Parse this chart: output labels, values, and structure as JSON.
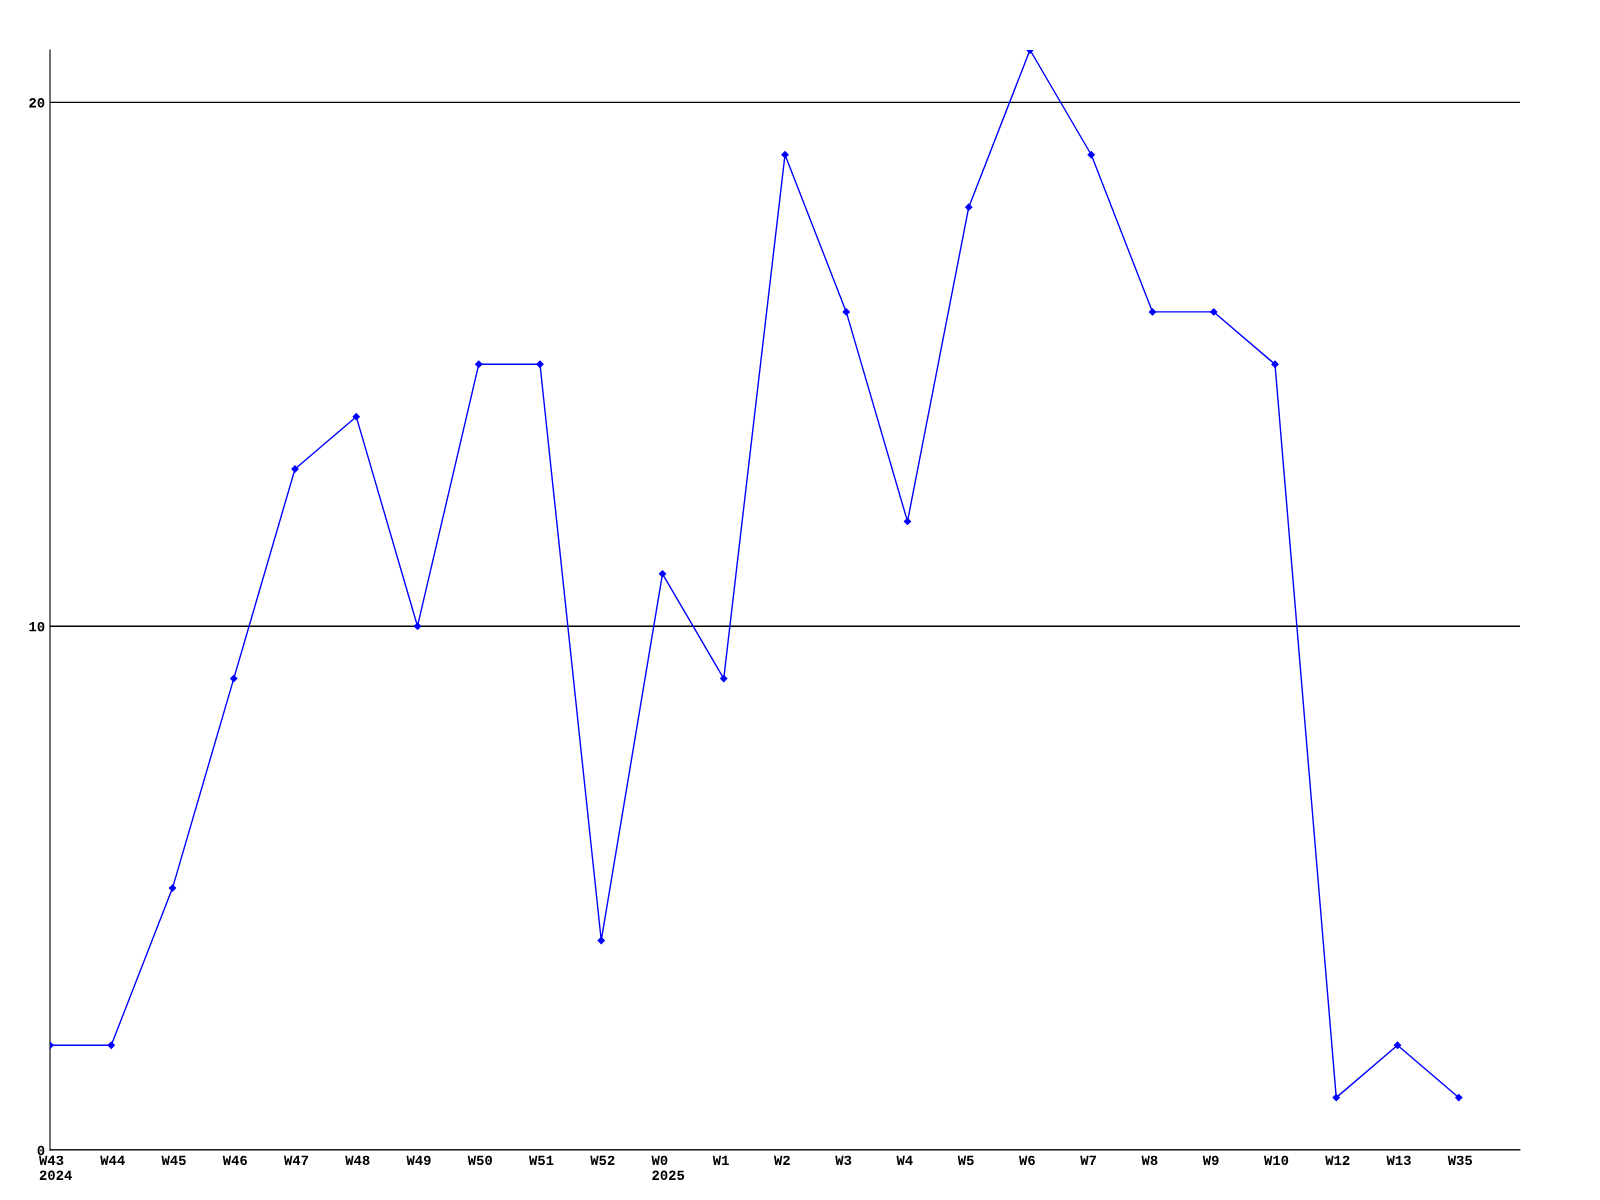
{
  "chart_data": {
    "type": "line",
    "categories": [
      "W43\n2024",
      "W44",
      "W45",
      "W46",
      "W47",
      "W48",
      "W49",
      "W50",
      "W51",
      "W52",
      "W0\n2025",
      "W1",
      "W2",
      "W3",
      "W4",
      "W5",
      "W6",
      "W7",
      "W8",
      "W9",
      "W10",
      "W12",
      "W13",
      "W35"
    ],
    "series": [
      {
        "color": "#0000ff",
        "values": [
          2,
          2,
          5,
          9,
          13,
          14,
          10,
          15,
          15,
          4,
          11,
          9,
          19,
          16,
          12,
          18,
          21,
          19,
          16,
          16,
          15,
          1,
          2,
          1
        ]
      }
    ],
    "ylim": [
      0,
      21
    ],
    "yticks": [
      0,
      10,
      20
    ],
    "grid": "y",
    "marker": "diamond",
    "line_style": "solid"
  }
}
